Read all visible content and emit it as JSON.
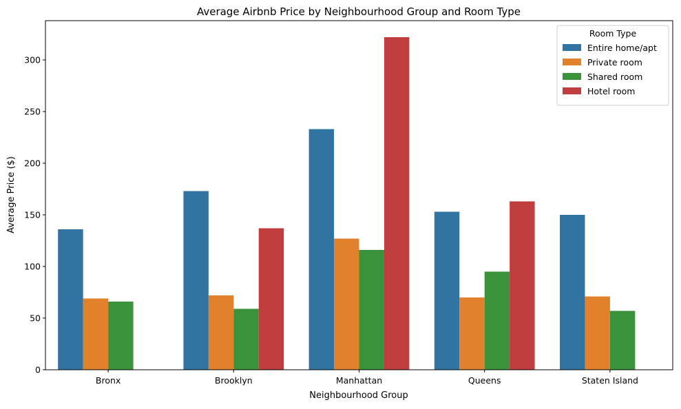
{
  "chart_data": {
    "type": "bar",
    "title": "Average Airbnb Price by Neighbourhood Group and Room Type",
    "xlabel": "Neighbourhood Group",
    "ylabel": "Average Price ($)",
    "ylim": [
      0,
      338
    ],
    "yticks": [
      0,
      50,
      100,
      150,
      200,
      250,
      300
    ],
    "categories": [
      "Bronx",
      "Brooklyn",
      "Manhattan",
      "Queens",
      "Staten Island"
    ],
    "legend": {
      "title": "Room Type",
      "position": "top-right"
    },
    "series": [
      {
        "name": "Entire home/apt",
        "color": "#3274a1",
        "values": [
          136,
          173,
          233,
          153,
          150
        ]
      },
      {
        "name": "Private room",
        "color": "#e1812c",
        "values": [
          69,
          72,
          127,
          70,
          71
        ]
      },
      {
        "name": "Shared room",
        "color": "#3a923a",
        "values": [
          66,
          59,
          116,
          95,
          57
        ]
      },
      {
        "name": "Hotel room",
        "color": "#c03d3e",
        "values": [
          null,
          137,
          322,
          163,
          null
        ]
      }
    ]
  }
}
